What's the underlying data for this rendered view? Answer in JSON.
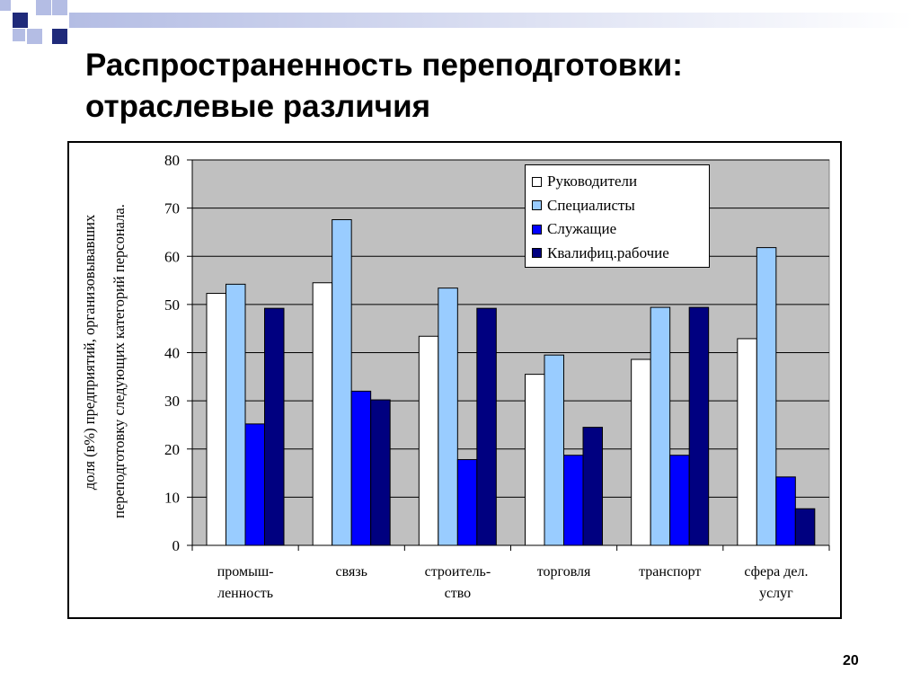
{
  "slide": {
    "title_line1": "Распространенность переподготовки:",
    "title_line2": "отраслевые различия",
    "page_number": "20"
  },
  "colors": {
    "deco_dark": "#1f2a7a",
    "deco_light": "#b4bde4",
    "plot_background": "#c0c0c0",
    "Руководители": "#ffffff",
    "Специалисты": "#99ccff",
    "Служащие": "#0000ff",
    "Квалифиц.рабочие": "#000080"
  },
  "chart_data": {
    "type": "bar",
    "title": "",
    "ylabel_line1": "доля (в%) предприятий, организовывавших",
    "ylabel_line2": "переподготовку следующих категорий персонала.",
    "xlabel": "",
    "ylim": [
      0,
      80
    ],
    "yticks": [
      0,
      10,
      20,
      30,
      40,
      50,
      60,
      70,
      80
    ],
    "grid": "horizontal",
    "legend_position": "top-right",
    "categories": [
      [
        "промыш-",
        "ленность"
      ],
      [
        "связь"
      ],
      [
        "строитель-",
        "ство"
      ],
      [
        "торговля"
      ],
      [
        "транспорт"
      ],
      [
        "сфера дел.",
        "услуг"
      ]
    ],
    "series": [
      {
        "name": "Руководители",
        "values": [
          52.3,
          54.5,
          43.4,
          35.5,
          38.6,
          42.9
        ]
      },
      {
        "name": "Специалисты",
        "values": [
          54.2,
          67.6,
          53.4,
          39.5,
          49.4,
          61.8
        ]
      },
      {
        "name": "Служащие",
        "values": [
          25.2,
          32.0,
          17.8,
          18.7,
          18.7,
          14.2
        ]
      },
      {
        "name": "Квалифиц.рабочие",
        "values": [
          49.2,
          30.2,
          49.2,
          24.5,
          49.4,
          7.6
        ]
      }
    ]
  }
}
